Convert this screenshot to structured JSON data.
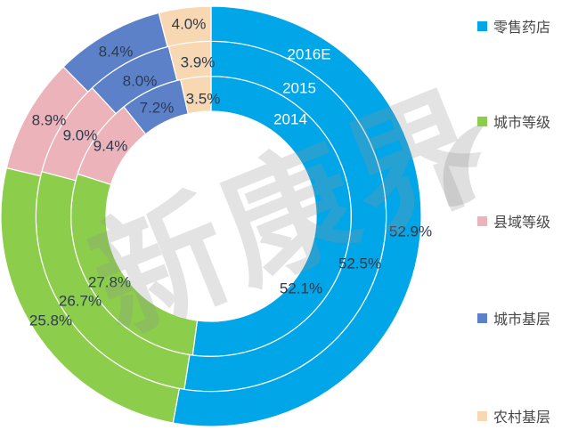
{
  "watermark": {
    "text": "新康界"
  },
  "chart_data": {
    "type": "donut",
    "subtype": "multi-ring",
    "unit": "%",
    "categories": [
      "零售药店",
      "城市等级",
      "县域等级",
      "城市基层",
      "农村基层"
    ],
    "colors": [
      "#00A6E8",
      "#8CCE4B",
      "#ECB3BA",
      "#5D81C9",
      "#F7D8B2"
    ],
    "rings": [
      {
        "label": "2014",
        "position": "inner",
        "values": [
          52.1,
          27.8,
          9.4,
          7.2,
          3.5
        ]
      },
      {
        "label": "2015",
        "position": "middle",
        "values": [
          52.5,
          26.7,
          9.0,
          8.0,
          3.9
        ]
      },
      {
        "label": "2016E",
        "position": "outer",
        "values": [
          52.9,
          25.8,
          8.9,
          8.4,
          4.0
        ]
      }
    ],
    "legend_position": "right",
    "label_format": "0.0%",
    "data_label_color": "#2D3B4E",
    "ring_year_label_color": "#FFFFFF",
    "start_angle_deg": 0,
    "direction": "clockwise"
  }
}
